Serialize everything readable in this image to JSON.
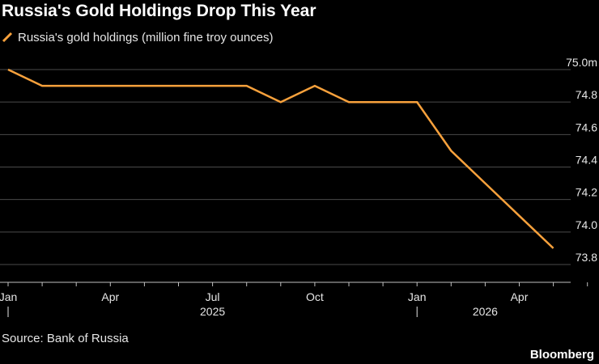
{
  "title": "Russia's Gold Holdings Drop This Year",
  "source": "Source: Bank of Russia",
  "brand": "Bloomberg",
  "colors": {
    "series": "#f7a13c",
    "grid": "#4a4a4a",
    "background": "#000000",
    "text": "#e6e6e6"
  },
  "chart_data": {
    "type": "line",
    "title": "Russia's Gold Holdings Drop This Year",
    "xlabel": "",
    "ylabel": "",
    "ylim": [
      73.75,
      75.0
    ],
    "yticks": [
      73.8,
      74.0,
      74.2,
      74.4,
      74.6,
      74.8,
      75.0
    ],
    "ytick_labels": [
      "73.8",
      "74.0",
      "74.2",
      "74.4",
      "74.6",
      "74.8",
      "75.0m"
    ],
    "y_axis_side": "right",
    "grid": true,
    "legend_position": "top-left",
    "x_tick_labels": [
      "Jan",
      "Apr",
      "Jul",
      "Oct",
      "Jan",
      "Apr"
    ],
    "x_year_labels": [
      "2025",
      "2026"
    ],
    "series": [
      {
        "name": "Russia's gold holdings (million fine troy ounces)",
        "x": [
          "2025-01",
          "2025-02",
          "2025-03",
          "2025-04",
          "2025-05",
          "2025-06",
          "2025-07",
          "2025-08",
          "2025-09",
          "2025-10",
          "2025-11",
          "2025-12",
          "2026-01",
          "2026-02",
          "2026-03",
          "2026-04",
          "2026-05"
        ],
        "values": [
          75.0,
          74.9,
          74.9,
          74.9,
          74.9,
          74.9,
          74.9,
          74.9,
          74.8,
          74.9,
          74.8,
          74.8,
          74.8,
          74.5,
          74.3,
          74.1,
          73.9
        ]
      }
    ]
  }
}
